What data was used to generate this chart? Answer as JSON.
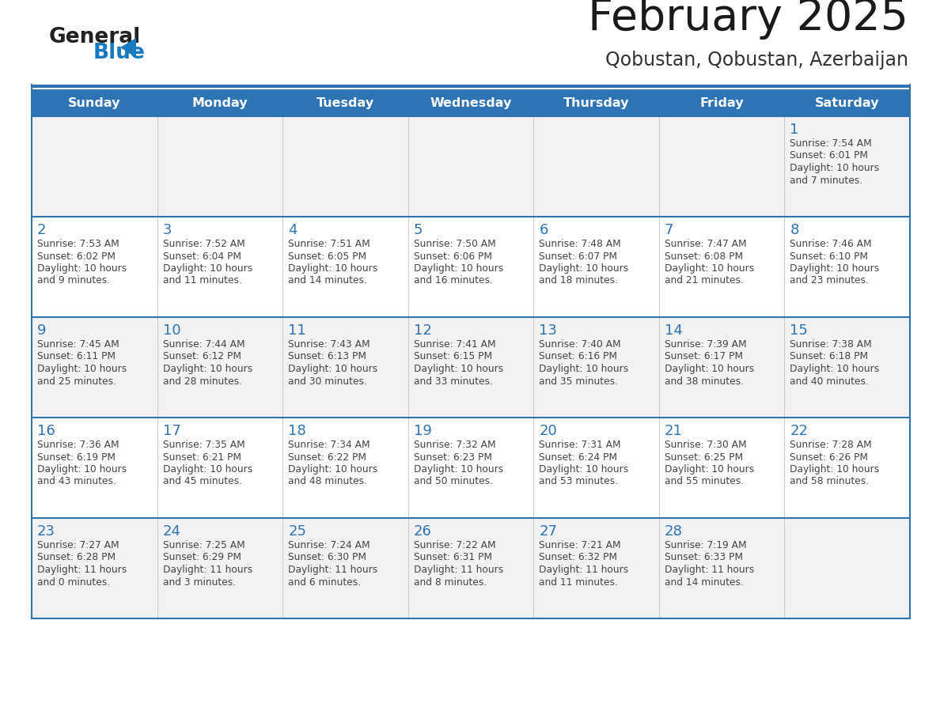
{
  "title": "February 2025",
  "subtitle": "Qobustan, Qobustan, Azerbaijan",
  "header_bg": "#2E74B5",
  "header_text_color": "#FFFFFF",
  "day_names": [
    "Sunday",
    "Monday",
    "Tuesday",
    "Wednesday",
    "Thursday",
    "Friday",
    "Saturday"
  ],
  "row_bg_even": "#F2F2F2",
  "row_bg_odd": "#FFFFFF",
  "cell_text_color": "#444444",
  "day_num_color": "#2E74B5",
  "logo_general_color": "#222222",
  "logo_blue_color": "#1a7abf",
  "border_color": "#2E74B5",
  "col_sep_color": "#CCCCCC",
  "calendar": [
    [
      {
        "day": null,
        "sunrise": null,
        "sunset": null,
        "daylight_line1": null,
        "daylight_line2": null
      },
      {
        "day": null,
        "sunrise": null,
        "sunset": null,
        "daylight_line1": null,
        "daylight_line2": null
      },
      {
        "day": null,
        "sunrise": null,
        "sunset": null,
        "daylight_line1": null,
        "daylight_line2": null
      },
      {
        "day": null,
        "sunrise": null,
        "sunset": null,
        "daylight_line1": null,
        "daylight_line2": null
      },
      {
        "day": null,
        "sunrise": null,
        "sunset": null,
        "daylight_line1": null,
        "daylight_line2": null
      },
      {
        "day": null,
        "sunrise": null,
        "sunset": null,
        "daylight_line1": null,
        "daylight_line2": null
      },
      {
        "day": 1,
        "sunrise": "Sunrise: 7:54 AM",
        "sunset": "Sunset: 6:01 PM",
        "daylight_line1": "Daylight: 10 hours",
        "daylight_line2": "and 7 minutes."
      }
    ],
    [
      {
        "day": 2,
        "sunrise": "Sunrise: 7:53 AM",
        "sunset": "Sunset: 6:02 PM",
        "daylight_line1": "Daylight: 10 hours",
        "daylight_line2": "and 9 minutes."
      },
      {
        "day": 3,
        "sunrise": "Sunrise: 7:52 AM",
        "sunset": "Sunset: 6:04 PM",
        "daylight_line1": "Daylight: 10 hours",
        "daylight_line2": "and 11 minutes."
      },
      {
        "day": 4,
        "sunrise": "Sunrise: 7:51 AM",
        "sunset": "Sunset: 6:05 PM",
        "daylight_line1": "Daylight: 10 hours",
        "daylight_line2": "and 14 minutes."
      },
      {
        "day": 5,
        "sunrise": "Sunrise: 7:50 AM",
        "sunset": "Sunset: 6:06 PM",
        "daylight_line1": "Daylight: 10 hours",
        "daylight_line2": "and 16 minutes."
      },
      {
        "day": 6,
        "sunrise": "Sunrise: 7:48 AM",
        "sunset": "Sunset: 6:07 PM",
        "daylight_line1": "Daylight: 10 hours",
        "daylight_line2": "and 18 minutes."
      },
      {
        "day": 7,
        "sunrise": "Sunrise: 7:47 AM",
        "sunset": "Sunset: 6:08 PM",
        "daylight_line1": "Daylight: 10 hours",
        "daylight_line2": "and 21 minutes."
      },
      {
        "day": 8,
        "sunrise": "Sunrise: 7:46 AM",
        "sunset": "Sunset: 6:10 PM",
        "daylight_line1": "Daylight: 10 hours",
        "daylight_line2": "and 23 minutes."
      }
    ],
    [
      {
        "day": 9,
        "sunrise": "Sunrise: 7:45 AM",
        "sunset": "Sunset: 6:11 PM",
        "daylight_line1": "Daylight: 10 hours",
        "daylight_line2": "and 25 minutes."
      },
      {
        "day": 10,
        "sunrise": "Sunrise: 7:44 AM",
        "sunset": "Sunset: 6:12 PM",
        "daylight_line1": "Daylight: 10 hours",
        "daylight_line2": "and 28 minutes."
      },
      {
        "day": 11,
        "sunrise": "Sunrise: 7:43 AM",
        "sunset": "Sunset: 6:13 PM",
        "daylight_line1": "Daylight: 10 hours",
        "daylight_line2": "and 30 minutes."
      },
      {
        "day": 12,
        "sunrise": "Sunrise: 7:41 AM",
        "sunset": "Sunset: 6:15 PM",
        "daylight_line1": "Daylight: 10 hours",
        "daylight_line2": "and 33 minutes."
      },
      {
        "day": 13,
        "sunrise": "Sunrise: 7:40 AM",
        "sunset": "Sunset: 6:16 PM",
        "daylight_line1": "Daylight: 10 hours",
        "daylight_line2": "and 35 minutes."
      },
      {
        "day": 14,
        "sunrise": "Sunrise: 7:39 AM",
        "sunset": "Sunset: 6:17 PM",
        "daylight_line1": "Daylight: 10 hours",
        "daylight_line2": "and 38 minutes."
      },
      {
        "day": 15,
        "sunrise": "Sunrise: 7:38 AM",
        "sunset": "Sunset: 6:18 PM",
        "daylight_line1": "Daylight: 10 hours",
        "daylight_line2": "and 40 minutes."
      }
    ],
    [
      {
        "day": 16,
        "sunrise": "Sunrise: 7:36 AM",
        "sunset": "Sunset: 6:19 PM",
        "daylight_line1": "Daylight: 10 hours",
        "daylight_line2": "and 43 minutes."
      },
      {
        "day": 17,
        "sunrise": "Sunrise: 7:35 AM",
        "sunset": "Sunset: 6:21 PM",
        "daylight_line1": "Daylight: 10 hours",
        "daylight_line2": "and 45 minutes."
      },
      {
        "day": 18,
        "sunrise": "Sunrise: 7:34 AM",
        "sunset": "Sunset: 6:22 PM",
        "daylight_line1": "Daylight: 10 hours",
        "daylight_line2": "and 48 minutes."
      },
      {
        "day": 19,
        "sunrise": "Sunrise: 7:32 AM",
        "sunset": "Sunset: 6:23 PM",
        "daylight_line1": "Daylight: 10 hours",
        "daylight_line2": "and 50 minutes."
      },
      {
        "day": 20,
        "sunrise": "Sunrise: 7:31 AM",
        "sunset": "Sunset: 6:24 PM",
        "daylight_line1": "Daylight: 10 hours",
        "daylight_line2": "and 53 minutes."
      },
      {
        "day": 21,
        "sunrise": "Sunrise: 7:30 AM",
        "sunset": "Sunset: 6:25 PM",
        "daylight_line1": "Daylight: 10 hours",
        "daylight_line2": "and 55 minutes."
      },
      {
        "day": 22,
        "sunrise": "Sunrise: 7:28 AM",
        "sunset": "Sunset: 6:26 PM",
        "daylight_line1": "Daylight: 10 hours",
        "daylight_line2": "and 58 minutes."
      }
    ],
    [
      {
        "day": 23,
        "sunrise": "Sunrise: 7:27 AM",
        "sunset": "Sunset: 6:28 PM",
        "daylight_line1": "Daylight: 11 hours",
        "daylight_line2": "and 0 minutes."
      },
      {
        "day": 24,
        "sunrise": "Sunrise: 7:25 AM",
        "sunset": "Sunset: 6:29 PM",
        "daylight_line1": "Daylight: 11 hours",
        "daylight_line2": "and 3 minutes."
      },
      {
        "day": 25,
        "sunrise": "Sunrise: 7:24 AM",
        "sunset": "Sunset: 6:30 PM",
        "daylight_line1": "Daylight: 11 hours",
        "daylight_line2": "and 6 minutes."
      },
      {
        "day": 26,
        "sunrise": "Sunrise: 7:22 AM",
        "sunset": "Sunset: 6:31 PM",
        "daylight_line1": "Daylight: 11 hours",
        "daylight_line2": "and 8 minutes."
      },
      {
        "day": 27,
        "sunrise": "Sunrise: 7:21 AM",
        "sunset": "Sunset: 6:32 PM",
        "daylight_line1": "Daylight: 11 hours",
        "daylight_line2": "and 11 minutes."
      },
      {
        "day": 28,
        "sunrise": "Sunrise: 7:19 AM",
        "sunset": "Sunset: 6:33 PM",
        "daylight_line1": "Daylight: 11 hours",
        "daylight_line2": "and 14 minutes."
      },
      {
        "day": null,
        "sunrise": null,
        "sunset": null,
        "daylight_line1": null,
        "daylight_line2": null
      }
    ]
  ]
}
